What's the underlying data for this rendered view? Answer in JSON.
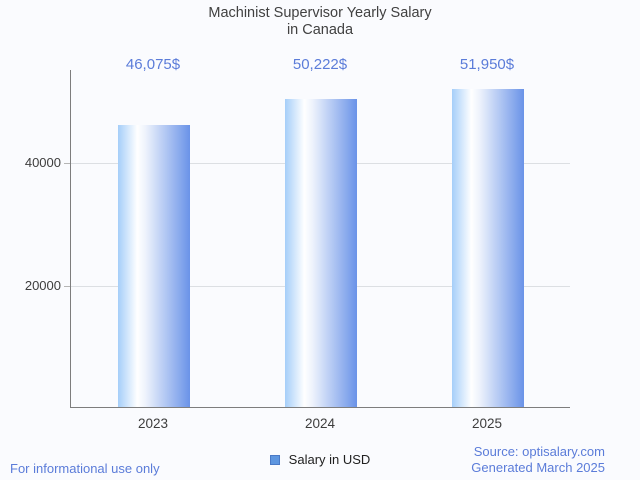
{
  "title": {
    "line1": "Machinist Supervisor Yearly Salary",
    "line2": "in Canada"
  },
  "chart_data": {
    "type": "bar",
    "title": "Machinist Supervisor Yearly Salary in Canada",
    "categories": [
      "2023",
      "2024",
      "2025"
    ],
    "series": [
      {
        "name": "Salary in USD",
        "values": [
          46075,
          50222,
          51950
        ]
      }
    ],
    "value_labels": [
      "46,075$",
      "50,222$",
      "51,950$"
    ],
    "xlabel": "",
    "ylabel": "",
    "y_ticks": [
      20000,
      40000
    ],
    "y_tick_labels": [
      "20000",
      "40000"
    ],
    "ylim": [
      0,
      55200
    ],
    "grid": true,
    "legend_position": "bottom"
  },
  "legend": {
    "label": "Salary in USD"
  },
  "footer": {
    "left": "For informational use only",
    "source": "Source: optisalary.com",
    "generated": "Generated March 2025"
  },
  "colors": {
    "background": "#fafbfe",
    "accent_text": "#5b7cd9",
    "title_text": "#414141",
    "axis_line": "#7d7d7d",
    "gridline": "#dcdfe3",
    "tick_text": "#3d3d3d",
    "bar_gradient_left": "#a5cef9",
    "bar_gradient_highlight": "#ffffff",
    "bar_gradient_right": "#6a93e8",
    "legend_swatch": "#5e96e0",
    "legend_swatch_border": "#4a79c6"
  }
}
